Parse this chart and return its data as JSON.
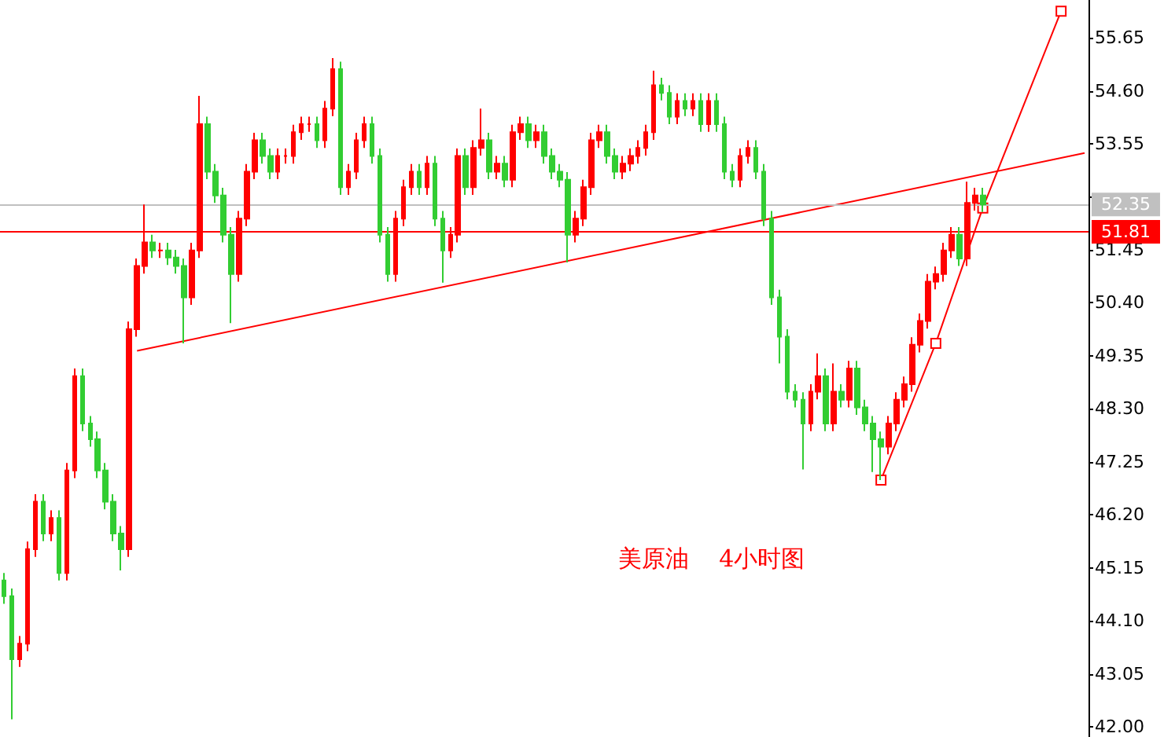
{
  "chart_data": {
    "type": "candlestick",
    "title": "美原油    4小时图",
    "categories": [
      null,
      null,
      null,
      null,
      null,
      null,
      null,
      null,
      null,
      null,
      null,
      null,
      null,
      null,
      null,
      null,
      null,
      null,
      null,
      null,
      null,
      null,
      null,
      null,
      null,
      null,
      null,
      null,
      null,
      null,
      null,
      null,
      null,
      null,
      null,
      null,
      null,
      null,
      null,
      null,
      null,
      null,
      null,
      null,
      null,
      null,
      null,
      null,
      null,
      null,
      null,
      null,
      null,
      null,
      null,
      null,
      null,
      null,
      null,
      null,
      null,
      null,
      null,
      null,
      null,
      null,
      null,
      null,
      null,
      null,
      null,
      null,
      null,
      null,
      null,
      null,
      null,
      null,
      null,
      null,
      null,
      null,
      null,
      null,
      null,
      null,
      null,
      null,
      null,
      null,
      null,
      null,
      null,
      null,
      null,
      null,
      null,
      null,
      null,
      null,
      null,
      null,
      null,
      null,
      null,
      null,
      null,
      null,
      null,
      null,
      null,
      null,
      null,
      null,
      null,
      null,
      null,
      null,
      null,
      null,
      null,
      null,
      null,
      null,
      null,
      null,
      null,
      null,
      null,
      null,
      null,
      null,
      null,
      null,
      null,
      null,
      null,
      null,
      null
    ],
    "ohlc": [
      [
        44.9,
        45.05,
        44.44,
        44.59
      ],
      [
        44.59,
        44.74,
        42.15,
        43.34
      ],
      [
        43.34,
        43.8,
        43.19,
        43.65
      ],
      [
        43.65,
        45.67,
        43.5,
        45.52
      ],
      [
        45.52,
        46.61,
        45.37,
        46.46
      ],
      [
        46.46,
        46.61,
        45.68,
        45.83
      ],
      [
        45.83,
        46.29,
        45.68,
        46.14
      ],
      [
        46.14,
        46.29,
        44.9,
        45.05
      ],
      [
        45.05,
        47.23,
        44.9,
        47.08
      ],
      [
        47.08,
        49.1,
        46.93,
        48.95
      ],
      [
        48.95,
        49.1,
        47.86,
        48.01
      ],
      [
        48.01,
        48.16,
        47.55,
        47.7
      ],
      [
        47.7,
        47.85,
        46.93,
        47.08
      ],
      [
        47.08,
        47.23,
        46.31,
        46.46
      ],
      [
        46.46,
        46.61,
        45.68,
        45.83
      ],
      [
        45.83,
        45.98,
        45.1,
        45.52
      ],
      [
        45.52,
        50.03,
        45.37,
        49.88
      ],
      [
        49.88,
        51.28,
        49.73,
        51.13
      ],
      [
        51.13,
        52.35,
        50.98,
        51.6
      ],
      [
        51.6,
        51.75,
        51.29,
        51.44
      ],
      [
        51.44,
        51.59,
        51.29,
        51.44
      ],
      [
        51.44,
        51.59,
        51.15,
        51.3
      ],
      [
        51.3,
        51.45,
        50.98,
        51.13
      ],
      [
        51.13,
        51.28,
        49.6,
        50.51
      ],
      [
        50.51,
        51.59,
        50.36,
        51.44
      ],
      [
        51.44,
        54.5,
        51.29,
        53.94
      ],
      [
        53.94,
        54.09,
        52.85,
        53.0
      ],
      [
        53.0,
        53.15,
        52.38,
        52.53
      ],
      [
        52.53,
        52.68,
        51.6,
        51.75
      ],
      [
        51.75,
        51.9,
        50.0,
        50.97
      ],
      [
        50.97,
        52.22,
        50.82,
        52.07
      ],
      [
        52.07,
        53.15,
        51.92,
        53.0
      ],
      [
        53.0,
        53.77,
        52.85,
        53.62
      ],
      [
        53.62,
        53.77,
        53.16,
        53.31
      ],
      [
        53.31,
        53.46,
        52.85,
        53.0
      ],
      [
        53.0,
        53.46,
        52.85,
        53.31
      ],
      [
        53.31,
        53.46,
        53.16,
        53.31
      ],
      [
        53.31,
        53.93,
        53.16,
        53.78
      ],
      [
        53.78,
        54.09,
        53.63,
        53.94
      ],
      [
        53.94,
        54.09,
        53.79,
        53.94
      ],
      [
        53.94,
        54.09,
        53.47,
        53.62
      ],
      [
        53.62,
        54.4,
        53.47,
        54.25
      ],
      [
        54.25,
        55.25,
        54.1,
        55.03
      ],
      [
        55.03,
        55.18,
        52.54,
        52.69
      ],
      [
        52.69,
        53.15,
        52.54,
        53.0
      ],
      [
        53.0,
        53.77,
        52.85,
        53.62
      ],
      [
        53.62,
        54.09,
        53.47,
        53.94
      ],
      [
        53.94,
        54.09,
        53.16,
        53.31
      ],
      [
        53.31,
        53.46,
        51.6,
        51.75
      ],
      [
        51.75,
        51.9,
        50.82,
        50.97
      ],
      [
        50.97,
        52.22,
        50.82,
        52.07
      ],
      [
        52.07,
        52.84,
        51.92,
        52.69
      ],
      [
        52.69,
        53.15,
        52.54,
        53.0
      ],
      [
        53.0,
        53.15,
        52.54,
        52.69
      ],
      [
        52.69,
        53.31,
        52.54,
        53.16
      ],
      [
        53.16,
        53.31,
        51.92,
        52.07
      ],
      [
        52.07,
        52.22,
        50.8,
        51.44
      ],
      [
        51.44,
        51.9,
        51.29,
        51.75
      ],
      [
        51.75,
        53.46,
        51.6,
        53.31
      ],
      [
        53.31,
        53.46,
        52.54,
        52.69
      ],
      [
        52.69,
        53.62,
        52.54,
        53.47
      ],
      [
        53.47,
        54.25,
        53.32,
        53.62
      ],
      [
        53.62,
        53.77,
        52.85,
        53.0
      ],
      [
        53.0,
        53.31,
        52.85,
        53.16
      ],
      [
        53.16,
        53.31,
        52.69,
        52.84
      ],
      [
        52.84,
        53.93,
        52.69,
        53.78
      ],
      [
        53.78,
        54.09,
        53.63,
        53.94
      ],
      [
        53.94,
        54.09,
        53.47,
        53.62
      ],
      [
        53.62,
        53.93,
        53.47,
        53.78
      ],
      [
        53.78,
        53.93,
        53.16,
        53.31
      ],
      [
        53.31,
        53.46,
        52.85,
        53.0
      ],
      [
        53.0,
        53.15,
        52.69,
        52.84
      ],
      [
        52.84,
        52.99,
        51.2,
        51.75
      ],
      [
        51.75,
        52.22,
        51.6,
        52.07
      ],
      [
        52.07,
        52.84,
        51.92,
        52.69
      ],
      [
        52.69,
        53.77,
        52.54,
        53.62
      ],
      [
        53.62,
        53.93,
        53.47,
        53.78
      ],
      [
        53.78,
        53.93,
        53.16,
        53.31
      ],
      [
        53.31,
        53.46,
        52.85,
        53.0
      ],
      [
        53.0,
        53.31,
        52.85,
        53.16
      ],
      [
        53.16,
        53.46,
        53.01,
        53.31
      ],
      [
        53.31,
        53.62,
        53.16,
        53.47
      ],
      [
        53.47,
        53.93,
        53.32,
        53.78
      ],
      [
        53.78,
        55.0,
        53.63,
        54.71
      ],
      [
        54.71,
        54.86,
        54.41,
        54.56
      ],
      [
        54.56,
        54.71,
        53.94,
        54.09
      ],
      [
        54.09,
        54.55,
        53.94,
        54.4
      ],
      [
        54.4,
        54.55,
        54.1,
        54.25
      ],
      [
        54.25,
        54.55,
        54.1,
        54.4
      ],
      [
        54.4,
        54.55,
        53.79,
        53.94
      ],
      [
        53.94,
        54.55,
        53.79,
        54.4
      ],
      [
        54.4,
        54.55,
        53.79,
        53.94
      ],
      [
        53.94,
        54.09,
        52.85,
        53.0
      ],
      [
        53.0,
        53.15,
        52.69,
        52.84
      ],
      [
        52.84,
        53.46,
        52.69,
        53.31
      ],
      [
        53.31,
        53.62,
        53.16,
        53.47
      ],
      [
        53.47,
        53.62,
        52.85,
        53.0
      ],
      [
        53.0,
        53.15,
        51.92,
        52.07
      ],
      [
        52.07,
        52.22,
        50.36,
        50.51
      ],
      [
        50.51,
        50.66,
        49.2,
        49.73
      ],
      [
        49.73,
        49.88,
        48.49,
        48.64
      ],
      [
        48.64,
        48.79,
        48.33,
        48.48
      ],
      [
        48.48,
        48.63,
        47.1,
        48.01
      ],
      [
        48.01,
        48.79,
        47.86,
        48.64
      ],
      [
        48.64,
        49.4,
        48.49,
        48.95
      ],
      [
        48.95,
        49.1,
        47.86,
        48.01
      ],
      [
        48.01,
        49.2,
        47.86,
        48.64
      ],
      [
        48.64,
        48.79,
        48.33,
        48.48
      ],
      [
        48.48,
        49.25,
        48.33,
        49.1
      ],
      [
        49.1,
        49.25,
        48.18,
        48.33
      ],
      [
        48.33,
        48.48,
        47.86,
        48.01
      ],
      [
        48.01,
        48.16,
        47.05,
        47.7
      ],
      [
        47.7,
        47.85,
        46.89,
        47.55
      ],
      [
        47.55,
        48.16,
        47.4,
        48.01
      ],
      [
        48.01,
        48.63,
        47.86,
        48.48
      ],
      [
        48.48,
        48.94,
        48.33,
        48.79
      ],
      [
        48.79,
        49.72,
        48.64,
        49.57
      ],
      [
        49.57,
        50.19,
        49.42,
        50.04
      ],
      [
        50.04,
        50.97,
        49.89,
        50.82
      ],
      [
        50.82,
        51.12,
        50.67,
        50.97
      ],
      [
        50.97,
        51.59,
        50.82,
        51.44
      ],
      [
        51.44,
        51.9,
        51.29,
        51.75
      ],
      [
        51.75,
        51.9,
        51.13,
        51.28
      ],
      [
        51.28,
        52.8,
        51.13,
        52.38
      ],
      [
        52.38,
        52.68,
        52.23,
        52.53
      ],
      [
        52.53,
        52.68,
        52.2,
        52.35
      ],
      null,
      null,
      null,
      null,
      null,
      null,
      null,
      null,
      null,
      null,
      null,
      null,
      null
    ],
    "series": [
      {
        "type": "line",
        "color": "#ff0000",
        "values": [
          null,
          null,
          null,
          null,
          null,
          null,
          null,
          null,
          null,
          null,
          null,
          null,
          null,
          null,
          null,
          null,
          null,
          49.45,
          null,
          null,
          null,
          null,
          null,
          null,
          null,
          null,
          null,
          null,
          null,
          null,
          null,
          null,
          null,
          null,
          null,
          null,
          null,
          null,
          null,
          null,
          null,
          null,
          null,
          null,
          null,
          null,
          null,
          null,
          null,
          null,
          null,
          null,
          null,
          null,
          null,
          null,
          null,
          null,
          null,
          null,
          null,
          null,
          null,
          null,
          null,
          null,
          null,
          null,
          null,
          null,
          null,
          null,
          null,
          null,
          null,
          null,
          null,
          null,
          null,
          null,
          null,
          null,
          null,
          null,
          null,
          null,
          null,
          null,
          null,
          null,
          null,
          null,
          null,
          null,
          null,
          null,
          null,
          null,
          null,
          null,
          null,
          null,
          null,
          null,
          null,
          null,
          null,
          null,
          null,
          null,
          null,
          null,
          null,
          null,
          null,
          null,
          null,
          null,
          null,
          null,
          null,
          null,
          null,
          null,
          null,
          null,
          null,
          null,
          null,
          null,
          null,
          null,
          null,
          null,
          null,
          null,
          null,
          null,
          53.37
        ]
      },
      {
        "type": "line",
        "color": "#ff0000",
        "marker": "square",
        "values": [
          null,
          null,
          null,
          null,
          null,
          null,
          null,
          null,
          null,
          null,
          null,
          null,
          null,
          null,
          null,
          null,
          null,
          null,
          null,
          null,
          null,
          null,
          null,
          null,
          null,
          null,
          null,
          null,
          null,
          null,
          null,
          null,
          null,
          null,
          null,
          null,
          null,
          null,
          null,
          null,
          null,
          null,
          null,
          null,
          null,
          null,
          null,
          null,
          null,
          null,
          null,
          null,
          null,
          null,
          null,
          null,
          null,
          null,
          null,
          null,
          null,
          null,
          null,
          null,
          null,
          null,
          null,
          null,
          null,
          null,
          null,
          null,
          null,
          null,
          null,
          null,
          null,
          null,
          null,
          null,
          null,
          null,
          null,
          null,
          null,
          null,
          null,
          null,
          null,
          null,
          null,
          null,
          null,
          null,
          null,
          null,
          null,
          null,
          null,
          null,
          null,
          null,
          null,
          null,
          null,
          null,
          null,
          null,
          null,
          null,
          null,
          null,
          46.89,
          null,
          null,
          null,
          null,
          null,
          null,
          49.6,
          null,
          null,
          null,
          null,
          null,
          52.28,
          null,
          null,
          null,
          null,
          null,
          null,
          null,
          null,
          null,
          56.18,
          null,
          null,
          null
        ]
      }
    ],
    "ylim": [
      41.8,
      56.4
    ],
    "yticks": [
      {
        "value": 42,
        "label": "42.00"
      },
      {
        "value": 43.05,
        "label": "43.05"
      },
      {
        "value": 44.1,
        "label": "44.10"
      },
      {
        "value": 45.15,
        "label": "45.15"
      },
      {
        "value": 46.2,
        "label": "46.20"
      },
      {
        "value": 47.25,
        "label": "47.25"
      },
      {
        "value": 48.3,
        "label": "48.30"
      },
      {
        "value": 49.35,
        "label": "49.35"
      },
      {
        "value": 50.4,
        "label": "50.40"
      },
      {
        "value": 51.45,
        "label": "51.45"
      },
      {
        "value": 52.5,
        "label": null
      },
      {
        "value": 53.55,
        "label": "53.55"
      },
      {
        "value": 54.6,
        "label": "54.60"
      },
      {
        "value": 55.65,
        "label": "55.65"
      }
    ],
    "ref_lines": [
      {
        "axis": "y",
        "value": 52.35,
        "label": "52.35",
        "color": "#c0c0c0"
      },
      {
        "axis": "y",
        "value": 51.81,
        "label": "51.81",
        "color": "#ff0000"
      }
    ],
    "tick_labels": "y",
    "grid": false
  }
}
